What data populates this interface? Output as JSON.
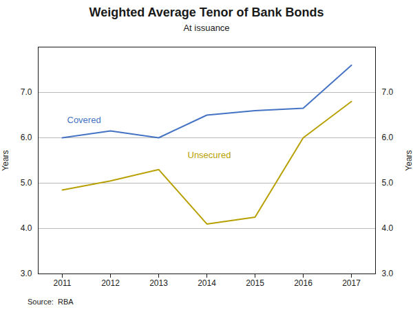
{
  "chart_data": {
    "type": "line",
    "title": "Weighted Average Tenor of Bank Bonds",
    "subtitle": "At issuance",
    "source": "Source:  RBA",
    "ylabel": "Years",
    "y2label": "Years",
    "x": [
      2011,
      2012,
      2013,
      2014,
      2015,
      2016,
      2017
    ],
    "series": [
      {
        "name": "Covered",
        "color": "#4472C4",
        "values": [
          6.0,
          6.15,
          6.0,
          6.5,
          6.6,
          6.65,
          7.6
        ],
        "label_x": 2011.1,
        "label_y": 6.32
      },
      {
        "name": "Unsecured",
        "color": "#B8A000",
        "values": [
          4.85,
          5.05,
          5.3,
          4.1,
          4.25,
          6.0,
          6.8
        ],
        "label_x": 2013.6,
        "label_y": 5.55
      }
    ],
    "xlim": [
      2010.5,
      2017.5
    ],
    "xticks": [
      2011,
      2012,
      2013,
      2014,
      2015,
      2016,
      2017
    ],
    "ylim": [
      3,
      8
    ],
    "yticks": [
      3,
      4,
      5,
      6,
      7
    ],
    "y2lim": [
      3,
      8
    ],
    "y2ticks": [
      3,
      4,
      5,
      6,
      7
    ],
    "grid": true
  }
}
